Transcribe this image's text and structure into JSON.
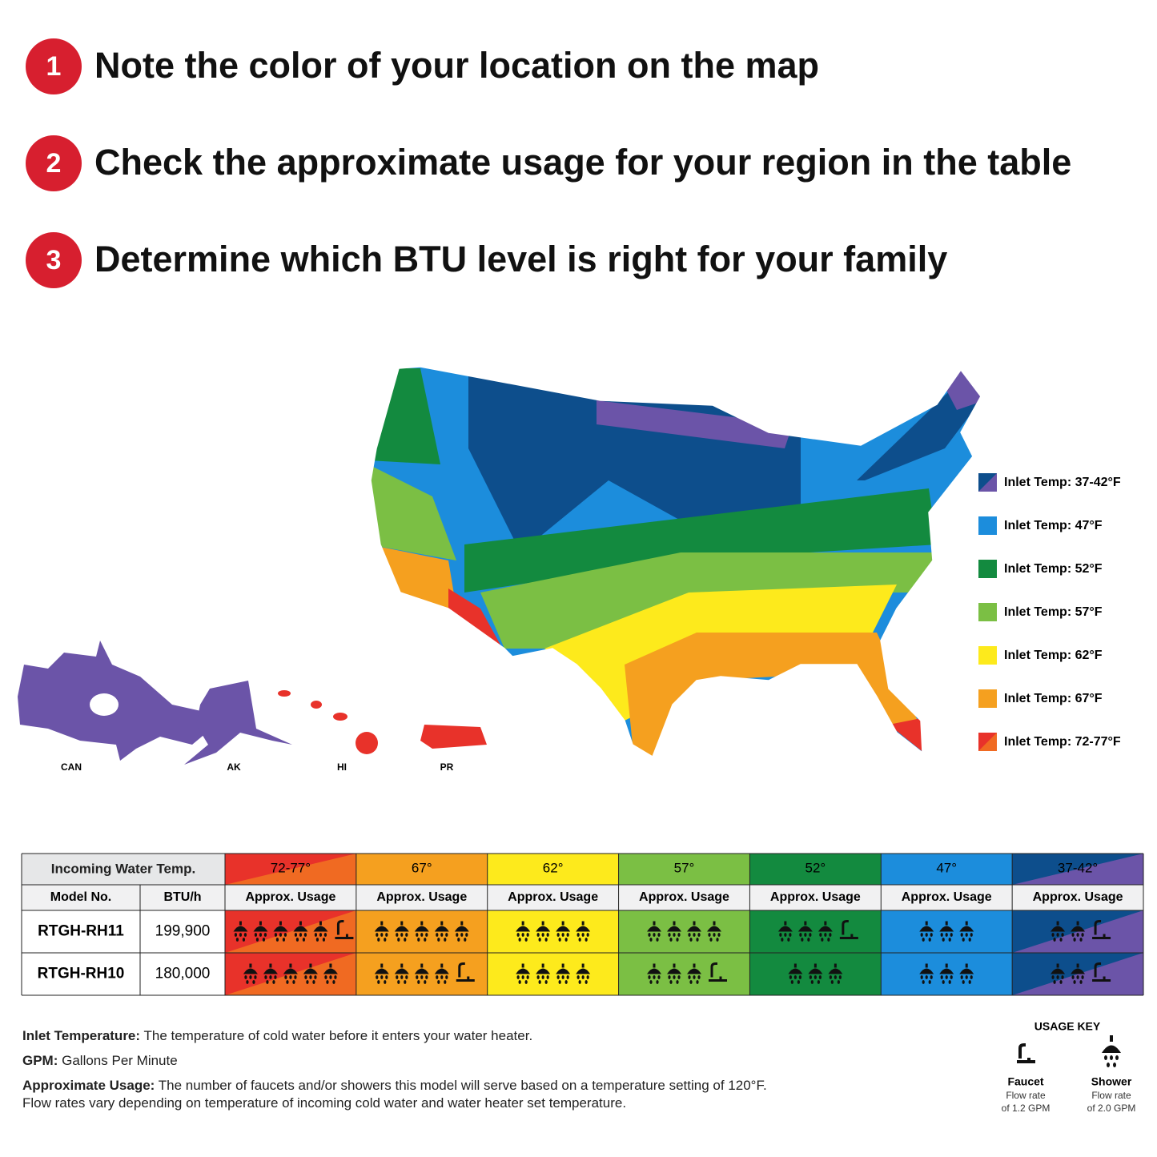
{
  "steps": [
    {
      "number": "1",
      "text": "Note the color of your location on the map"
    },
    {
      "number": "2",
      "text": "Check the approximate usage for your region in the table"
    },
    {
      "number": "3",
      "text": "Determine which BTU level is right for your family"
    }
  ],
  "map": {
    "insets": [
      "CAN",
      "AK",
      "HI",
      "PR"
    ]
  },
  "legend": [
    {
      "label": "Inlet Temp: 37-42°F",
      "color": "#0d4e8c",
      "color2": "#6b54a8"
    },
    {
      "label": "Inlet Temp: 47°F",
      "color": "#1c8ddc"
    },
    {
      "label": "Inlet Temp: 52°F",
      "color": "#138a3f"
    },
    {
      "label": "Inlet Temp: 57°F",
      "color": "#7bbf44"
    },
    {
      "label": "Inlet Temp: 62°F",
      "color": "#fdea1c"
    },
    {
      "label": "Inlet Temp: 67°F",
      "color": "#f5a01f"
    },
    {
      "label": "Inlet Temp: 72-77°F",
      "color": "#e8322a",
      "color2": "#f06a22"
    }
  ],
  "table": {
    "header": "Incoming Water Temp.",
    "model_header": "Model No.",
    "btu_header": "BTU/h",
    "usage_header": "Approx. Usage",
    "columns": [
      {
        "temp": "72-77°",
        "color": "#e8322a",
        "color2": "#f06a22"
      },
      {
        "temp": "67°",
        "color": "#f5a01f"
      },
      {
        "temp": "62°",
        "color": "#fdea1c"
      },
      {
        "temp": "57°",
        "color": "#7bbf44"
      },
      {
        "temp": "52°",
        "color": "#138a3f"
      },
      {
        "temp": "47°",
        "color": "#1c8ddc"
      },
      {
        "temp": "37-42°",
        "color": "#0d4e8c",
        "color2": "#6b54a8"
      }
    ],
    "rows": [
      {
        "model": "RTGH-RH11",
        "btu": "199,900",
        "usage": [
          {
            "showers": 5,
            "faucets": 1
          },
          {
            "showers": 5,
            "faucets": 0
          },
          {
            "showers": 4,
            "faucets": 0
          },
          {
            "showers": 4,
            "faucets": 0
          },
          {
            "showers": 3,
            "faucets": 1
          },
          {
            "showers": 3,
            "faucets": 0
          },
          {
            "showers": 2,
            "faucets": 1
          }
        ]
      },
      {
        "model": "RTGH-RH10",
        "btu": "180,000",
        "usage": [
          {
            "showers": 5,
            "faucets": 0
          },
          {
            "showers": 4,
            "faucets": 1
          },
          {
            "showers": 4,
            "faucets": 0
          },
          {
            "showers": 3,
            "faucets": 1
          },
          {
            "showers": 3,
            "faucets": 0
          },
          {
            "showers": 3,
            "faucets": 0
          },
          {
            "showers": 2,
            "faucets": 1
          }
        ]
      }
    ]
  },
  "notes": [
    {
      "term": "Inlet Temperature:",
      "text": [
        "The temperature of cold water before it enters your water heater."
      ]
    },
    {
      "term": "GPM:",
      "text": [
        "Gallons Per Minute"
      ]
    },
    {
      "term": "Approximate Usage:",
      "text": [
        "The number of faucets and/or showers this model will serve based on a temperature setting of 120°F.",
        "Flow rates vary depending on temperature of incoming cold water and water heater set temperature."
      ]
    }
  ],
  "usage_key": {
    "title": "USAGE KEY",
    "items": [
      {
        "name": "Faucet",
        "lines": [
          "Flow rate",
          "of 1.2 GPM"
        ]
      },
      {
        "name": "Shower",
        "lines": [
          "Flow rate",
          "of 2.0 GPM"
        ]
      }
    ]
  }
}
